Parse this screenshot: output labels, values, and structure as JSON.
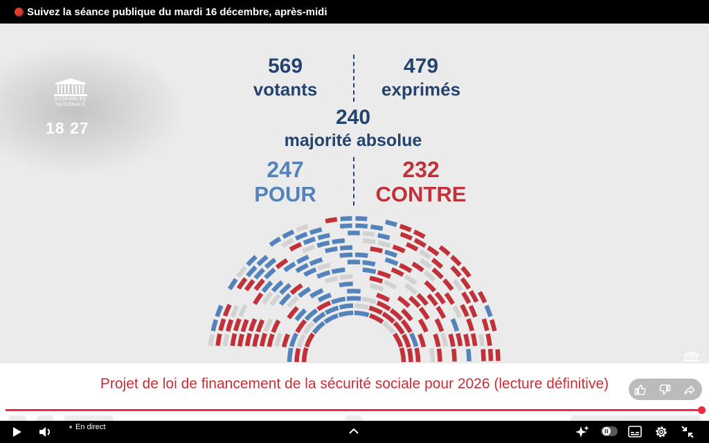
{
  "top_bar": {
    "title": "Suivez la séance publique du mardi 16 décembre, après-midi"
  },
  "logo": {
    "line1": "ASSEMBLÉE",
    "line2": "NATIONALE"
  },
  "clock": "18 27",
  "vote": {
    "votants": {
      "value": "569",
      "label": "votants"
    },
    "exprimes": {
      "value": "479",
      "label": "exprimés"
    },
    "majorite": {
      "value": "240",
      "label": "majorité absolue"
    },
    "pour": {
      "value": "247",
      "label": "POUR"
    },
    "contre": {
      "value": "232",
      "label": "CONTRE"
    }
  },
  "caption": "Projet de loi de financement de la sécurité sociale pour 2026 (lecture définitive)",
  "player": {
    "live_label": "En direct",
    "progress": 1.0
  },
  "colors": {
    "pour": "#5482ba",
    "contre": "#c0313a",
    "navy": "#24446f",
    "empty": "#d2d2d2",
    "caption": "#c52f35",
    "live": "#e23b2f",
    "progress": "#f0263f"
  },
  "icons": [
    "live-dot-icon",
    "assemblee-logo-icon",
    "like-icon",
    "dislike-icon",
    "share-icon",
    "play-icon",
    "volume-icon",
    "chevron-up-icon",
    "sparkle-icon",
    "pause-toggle-icon",
    "subtitles-icon",
    "settings-icon",
    "exit-fullscreen-icon"
  ]
}
